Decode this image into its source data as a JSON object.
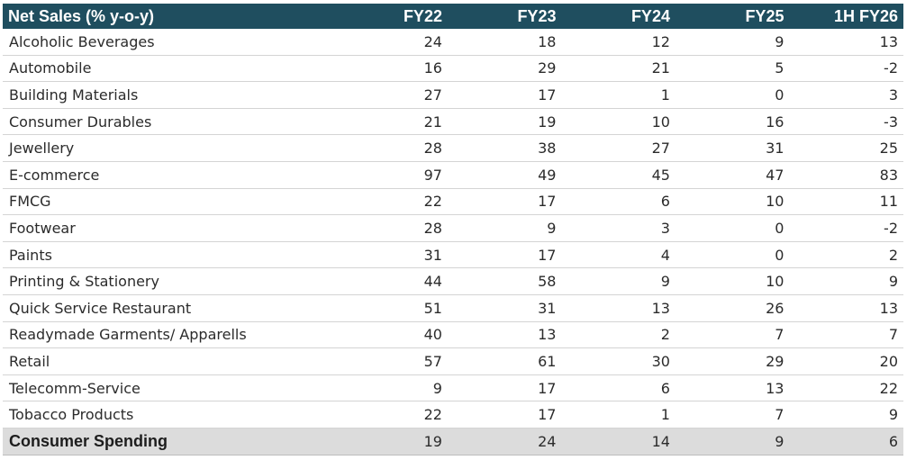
{
  "chart_data": {
    "type": "table",
    "title": "Net Sales (% y-o-y)",
    "columns": [
      "FY22",
      "FY23",
      "FY24",
      "FY25",
      "1H FY26"
    ],
    "rows": [
      {
        "label": "Alcoholic Beverages",
        "values": [
          "24",
          "18",
          "12",
          "9",
          "13"
        ]
      },
      {
        "label": "Automobile",
        "values": [
          "16",
          "29",
          "21",
          "5",
          "-2"
        ]
      },
      {
        "label": "Building Materials",
        "values": [
          "27",
          "17",
          "1",
          "0",
          "3"
        ]
      },
      {
        "label": "Consumer Durables",
        "values": [
          "21",
          "19",
          "10",
          "16",
          "-3"
        ]
      },
      {
        "label": "Jewellery",
        "values": [
          "28",
          "38",
          "27",
          "31",
          "25"
        ]
      },
      {
        "label": "E-commerce",
        "values": [
          "97",
          "49",
          "45",
          "47",
          "83"
        ]
      },
      {
        "label": "FMCG",
        "values": [
          "22",
          "17",
          "6",
          "10",
          "11"
        ]
      },
      {
        "label": "Footwear",
        "values": [
          "28",
          "9",
          "3",
          "0",
          "-2"
        ]
      },
      {
        "label": "Paints",
        "values": [
          "31",
          "17",
          "4",
          "0",
          "2"
        ]
      },
      {
        "label": "Printing & Stationery",
        "values": [
          "44",
          "58",
          "9",
          "10",
          "9"
        ]
      },
      {
        "label": "Quick Service Restaurant",
        "values": [
          "51",
          "31",
          "13",
          "26",
          "13"
        ]
      },
      {
        "label": "Readymade Garments/ Apparells",
        "values": [
          "40",
          "13",
          "2",
          "7",
          "7"
        ]
      },
      {
        "label": "Retail",
        "values": [
          "57",
          "61",
          "30",
          "29",
          "20"
        ]
      },
      {
        "label": "Telecomm-Service",
        "values": [
          "9",
          "17",
          "6",
          "13",
          "22"
        ]
      },
      {
        "label": "Tobacco Products",
        "values": [
          "22",
          "17",
          "1",
          "7",
          "9"
        ]
      }
    ],
    "total": {
      "label": "Consumer Spending",
      "values": [
        "19",
        "24",
        "14",
        "9",
        "6"
      ]
    }
  },
  "colors": {
    "header_bg": "#1f4e5f",
    "header_text": "#ffffff",
    "total_bg": "#dcdcdc"
  }
}
